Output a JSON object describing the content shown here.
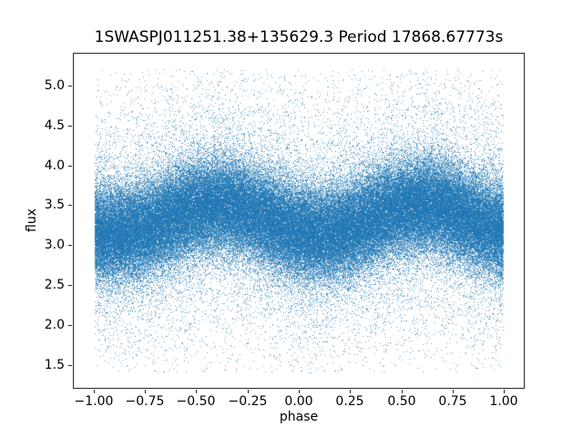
{
  "chart_data": {
    "type": "scatter",
    "title": "1SWASPJ011251.38+135629.3 Period 17868.67773s",
    "xlabel": "phase",
    "ylabel": "flux",
    "xlim": [
      -1.102,
      1.102
    ],
    "ylim": [
      1.2,
      5.41
    ],
    "grid": false,
    "legend": "none",
    "x_ticks": [
      {
        "v": -1.0,
        "label": "−1.00"
      },
      {
        "v": -0.75,
        "label": "−0.75"
      },
      {
        "v": -0.5,
        "label": "−0.50"
      },
      {
        "v": -0.25,
        "label": "−0.25"
      },
      {
        "v": 0.0,
        "label": "0.00"
      },
      {
        "v": 0.25,
        "label": "0.25"
      },
      {
        "v": 0.5,
        "label": "0.50"
      },
      {
        "v": 0.75,
        "label": "0.75"
      },
      {
        "v": 1.0,
        "label": "1.00"
      }
    ],
    "y_ticks": [
      {
        "v": 1.5,
        "label": "1.5"
      },
      {
        "v": 2.0,
        "label": "2.0"
      },
      {
        "v": 2.5,
        "label": "2.5"
      },
      {
        "v": 3.0,
        "label": "3.0"
      },
      {
        "v": 3.5,
        "label": "3.5"
      },
      {
        "v": 4.0,
        "label": "4.0"
      },
      {
        "v": 4.5,
        "label": "4.5"
      },
      {
        "v": 5.0,
        "label": "5.0"
      }
    ],
    "marker_color_rgb": [
      31,
      119,
      180
    ],
    "marker_color_hex": "#1f77b4",
    "marker_alpha": 0.65,
    "marker_size_px": 1,
    "n_points": 140000,
    "model": {
      "description": "phase-folded sinusoidal light curve plotted over two cycles (phase -1 to 1)",
      "phase_min": -1.0,
      "phase_max": 1.0,
      "flux_mean": 3.32,
      "amplitude": 0.18,
      "peak_phase": 0.6,
      "trough_phase": 0.1,
      "core_sigma": 0.3,
      "tail_sigma": 0.9,
      "tail_fraction": 0.13,
      "flux_min": 1.4,
      "flux_max": 5.22,
      "seed": 1234567
    },
    "spine_color": "#2b2b2b"
  }
}
